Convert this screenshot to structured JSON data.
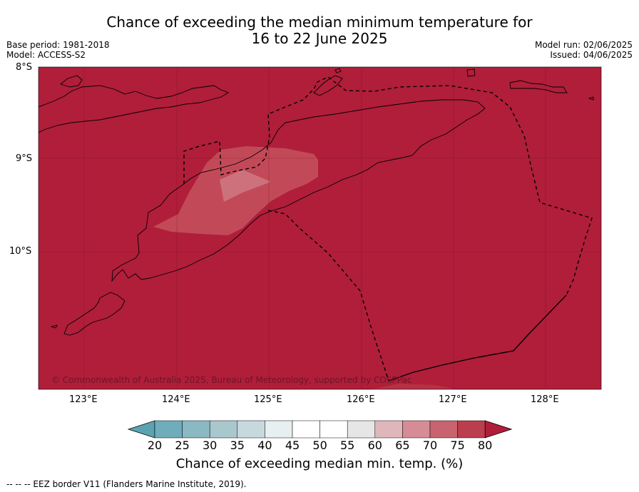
{
  "title_line1": "Chance of exceeding the median minimum temperature for",
  "title_line2": "16 to 22 June 2025",
  "meta_left": [
    "Base period: 1981-2018",
    "Model: ACCESS-S2"
  ],
  "meta_right": [
    "Model run: 02/06/2025",
    "Issued: 04/06/2025"
  ],
  "lat_ticks": [
    "8°S",
    "9°S",
    "10°S"
  ],
  "lon_ticks": [
    "123°E",
    "124°E",
    "125°E",
    "126°E",
    "127°E",
    "128°E"
  ],
  "copyright": "© Commonwealth of Australia 2025, Bureau of Meteorology, supported by COSPPac",
  "colorbar": {
    "labels": [
      "20",
      "25",
      "30",
      "35",
      "40",
      "45",
      "50",
      "55",
      "60",
      "65",
      "70",
      "75",
      "80"
    ],
    "colors": [
      "#5ca3b2",
      "#6fadbb",
      "#8ab8c3",
      "#a9c8cd",
      "#c8d9dd",
      "#e8eff0",
      "#ffffff",
      "#ffffff",
      "#e6e6e6",
      "#e0b6bd",
      "#d68c96",
      "#c9636f",
      "#bb3e4e",
      "#b01e3a"
    ],
    "title": "Chance of exceeding median min. temp. (%)"
  },
  "footer": "--  --  -- EEZ border V11 (Flanders Marine Institute, 2019).",
  "colors": {
    "background_dominant": "#b01e3a",
    "zone_75_80": "#c24a58",
    "zone_70_75": "#cd727c"
  }
}
